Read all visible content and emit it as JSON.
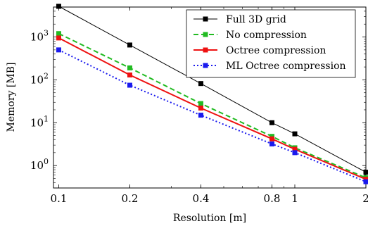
{
  "chart_data": {
    "type": "line",
    "xscale": "log",
    "yscale": "log",
    "xlabel": "Resolution [m]",
    "ylabel": "Memory [MB]",
    "xlim": [
      0.095,
      2
    ],
    "ylim": [
      0.3,
      5000
    ],
    "x_ticks": [
      {
        "value": 0.1,
        "label": "0.1"
      },
      {
        "value": 0.2,
        "label": "0.2"
      },
      {
        "value": 0.4,
        "label": "0.4"
      },
      {
        "value": 0.8,
        "label": "0.8"
      },
      {
        "value": 1,
        "label": "1"
      },
      {
        "value": 2,
        "label": "2"
      }
    ],
    "y_ticks": [
      {
        "value": 1,
        "base": "10",
        "exp": "0"
      },
      {
        "value": 10,
        "base": "10",
        "exp": "1"
      },
      {
        "value": 100,
        "base": "10",
        "exp": "2"
      },
      {
        "value": 1000,
        "base": "10",
        "exp": "3"
      }
    ],
    "grid": false,
    "legend_position": "top-right",
    "x": [
      0.1,
      0.2,
      0.4,
      0.8,
      1,
      2
    ],
    "series": [
      {
        "name": "Full 3D grid",
        "color": "#000000",
        "dash": "solid",
        "width": 1,
        "values": [
          5200,
          650,
          82,
          10,
          5.5,
          0.7
        ]
      },
      {
        "name": "No compression",
        "color": "#22bb22",
        "dash": "dashed",
        "width": 2,
        "values": [
          1200,
          190,
          28,
          4.8,
          2.6,
          0.52
        ]
      },
      {
        "name": "Octree compression",
        "color": "#ee1111",
        "dash": "solid",
        "width": 2,
        "values": [
          950,
          130,
          22,
          4.2,
          2.4,
          0.48
        ]
      },
      {
        "name": "ML Octree compression",
        "color": "#1a1aee",
        "dash": "dotted",
        "width": 2,
        "values": [
          500,
          75,
          15,
          3.2,
          2.0,
          0.42
        ]
      }
    ]
  }
}
